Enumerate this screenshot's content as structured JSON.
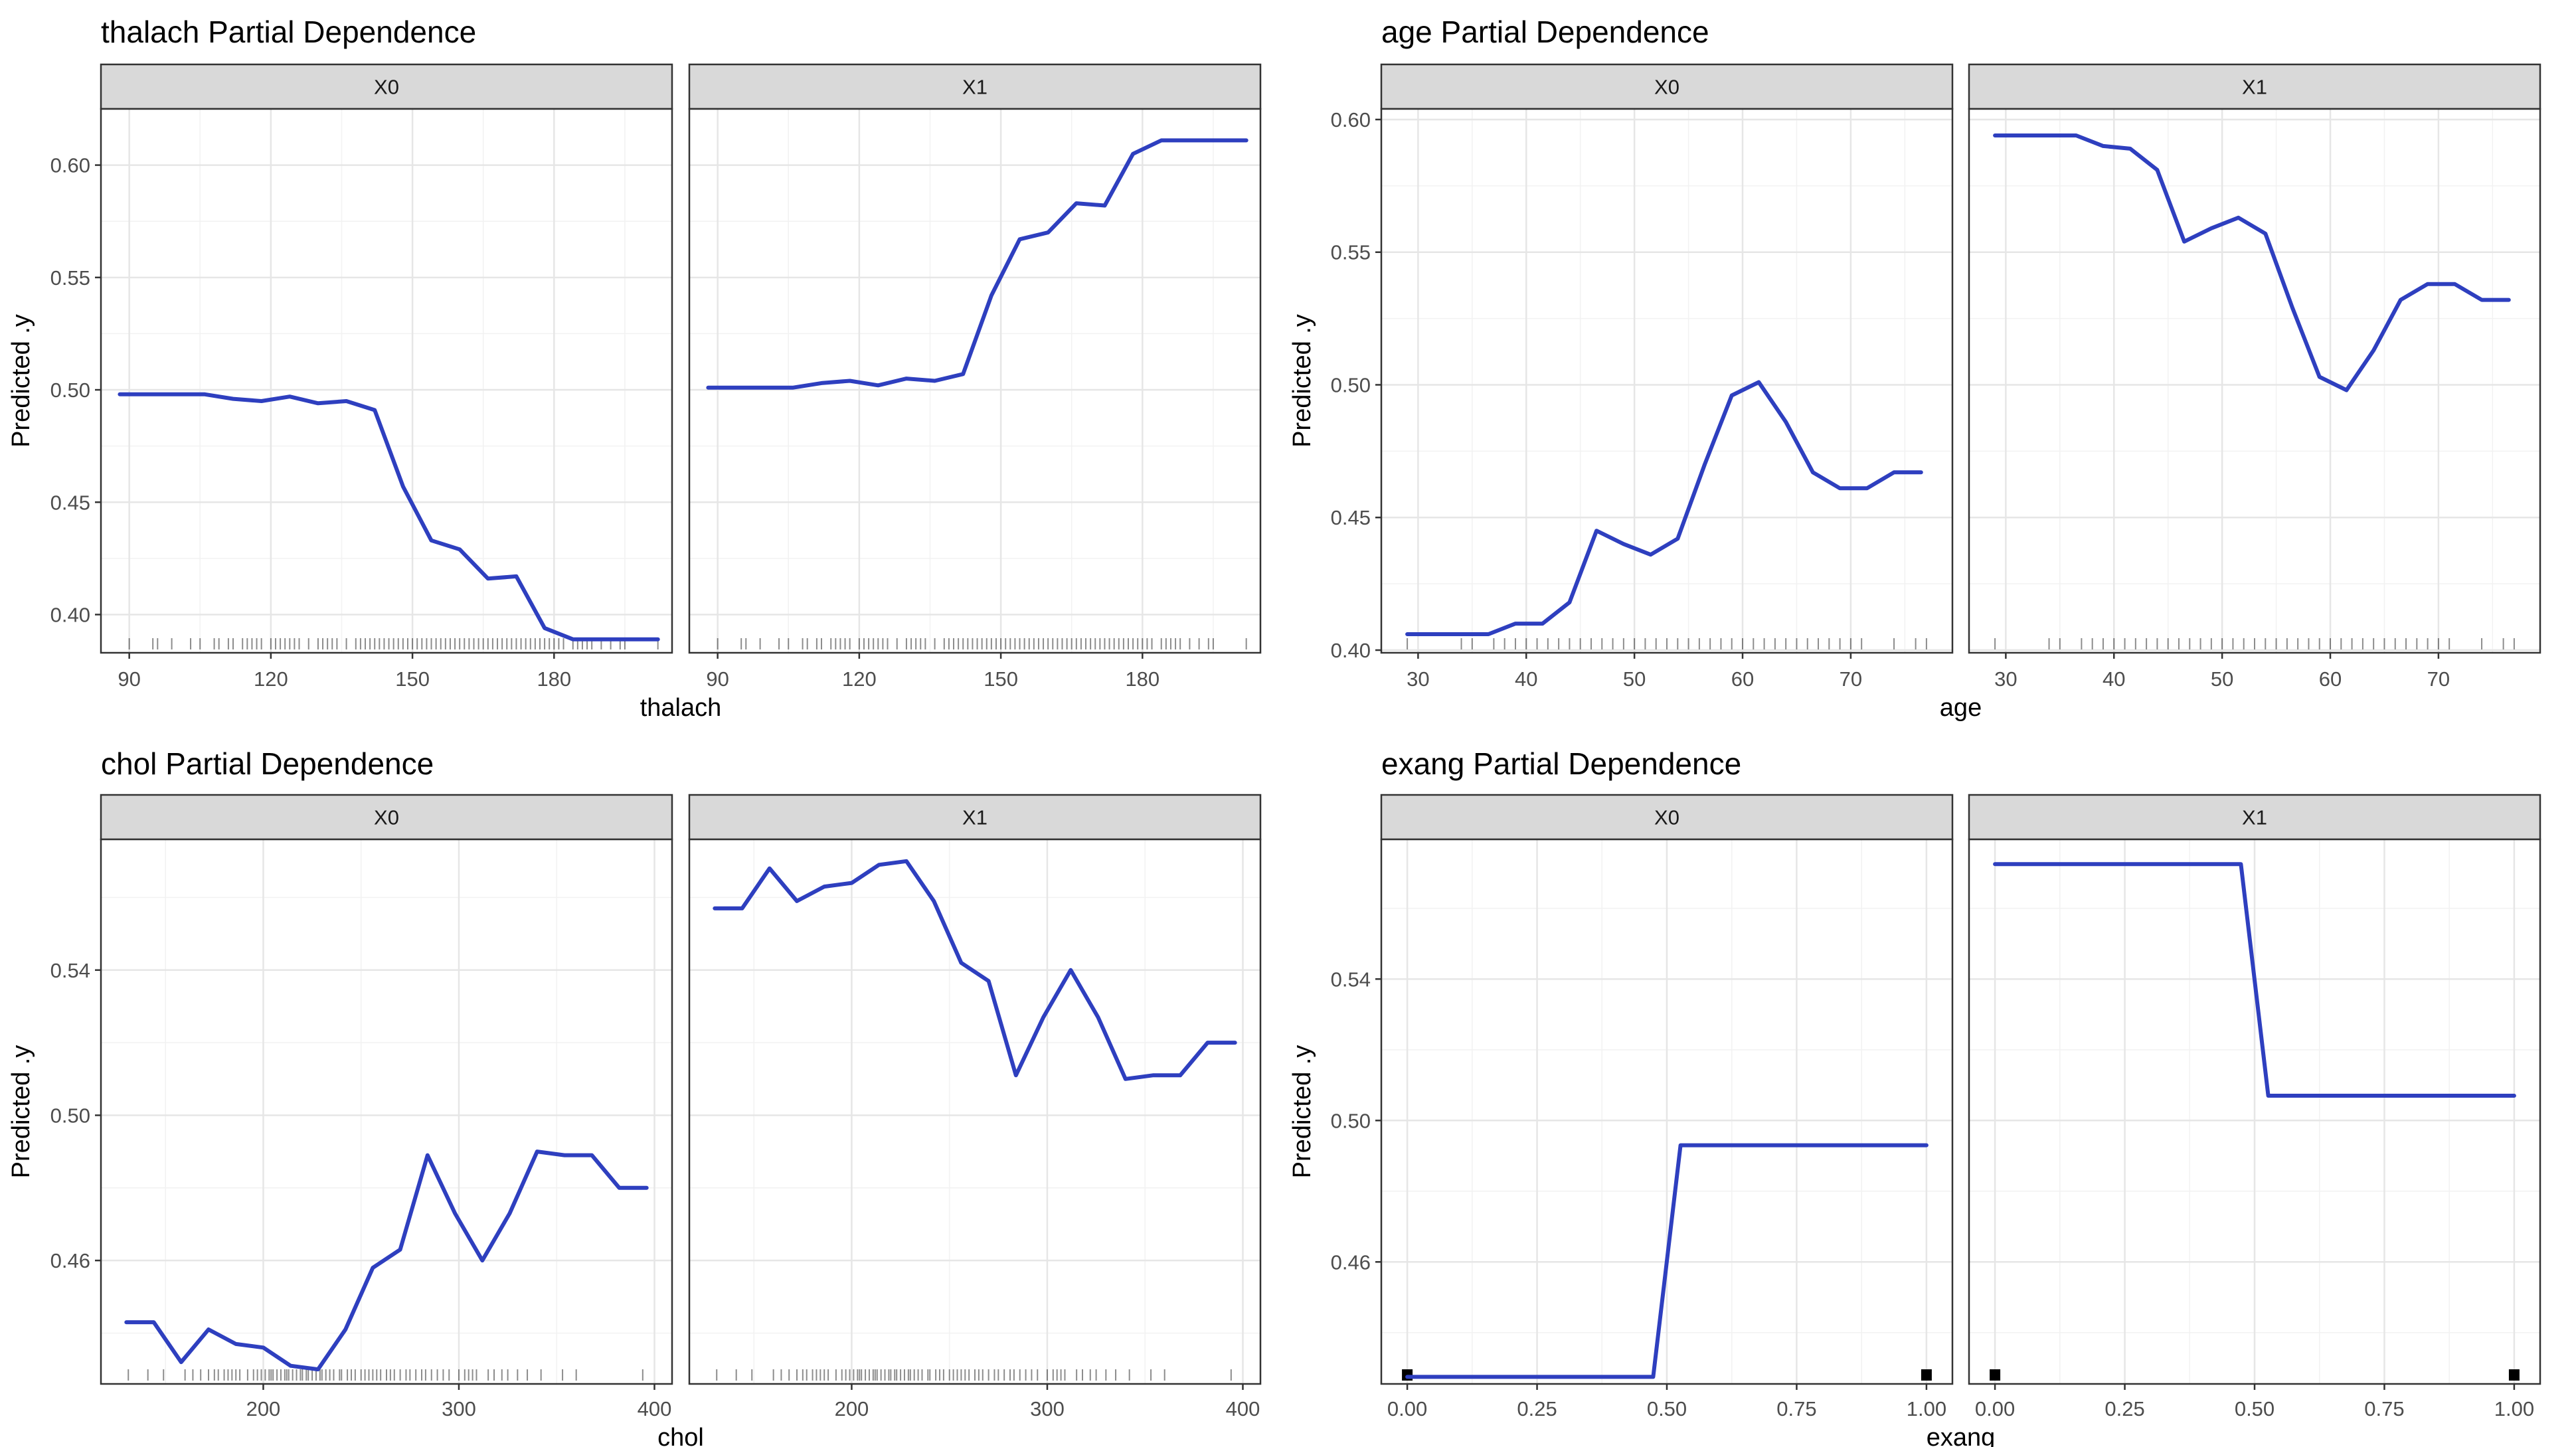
{
  "chart_data": [
    {
      "type": "line",
      "title": "thalach Partial Dependence",
      "xlabel": "thalach",
      "ylabel": "Predicted .y",
      "panels": [
        "X0",
        "X1"
      ],
      "xlim": [
        84,
        205
      ],
      "ylim": [
        0.383,
        0.625
      ],
      "xticks": [
        90,
        120,
        150,
        180
      ],
      "xtick_labels": [
        "90",
        "120",
        "150",
        "180"
      ],
      "yticks": [
        0.4,
        0.45,
        0.5,
        0.55,
        0.6
      ],
      "ytick_labels": [
        "0.40",
        "0.45",
        "0.50",
        "0.55",
        "0.60"
      ],
      "line_color": "#2E3FBF",
      "grid": true,
      "series": [
        {
          "x": [
            88,
            94,
            100,
            106,
            112,
            118,
            124,
            130,
            136,
            142,
            148,
            154,
            160,
            166,
            172,
            178,
            184,
            190,
            196,
            202
          ],
          "values": [
            0.498,
            0.498,
            0.498,
            0.498,
            0.496,
            0.495,
            0.497,
            0.494,
            0.495,
            0.491,
            0.457,
            0.433,
            0.429,
            0.416,
            0.417,
            0.394,
            0.389,
            0.389,
            0.389,
            0.389
          ]
        },
        {
          "x": [
            88,
            94,
            100,
            106,
            112,
            118,
            124,
            130,
            136,
            142,
            148,
            154,
            160,
            166,
            172,
            178,
            184,
            190,
            196,
            202
          ],
          "values": [
            0.501,
            0.501,
            0.501,
            0.501,
            0.503,
            0.504,
            0.502,
            0.505,
            0.504,
            0.507,
            0.542,
            0.567,
            0.57,
            0.583,
            0.582,
            0.605,
            0.611,
            0.611,
            0.611,
            0.611
          ]
        }
      ],
      "rug": [
        90,
        95,
        96,
        99,
        103,
        105,
        108,
        109,
        111,
        112,
        114,
        115,
        116,
        117,
        118,
        120,
        121,
        122,
        123,
        124,
        125,
        126,
        128,
        130,
        131,
        132,
        133,
        134,
        136,
        138,
        139,
        140,
        141,
        142,
        143,
        144,
        145,
        146,
        147,
        148,
        149,
        150,
        151,
        152,
        153,
        154,
        155,
        156,
        157,
        158,
        159,
        160,
        161,
        162,
        163,
        164,
        165,
        166,
        167,
        168,
        169,
        170,
        171,
        172,
        173,
        174,
        175,
        176,
        177,
        178,
        179,
        180,
        181,
        182,
        184,
        185,
        186,
        187,
        188,
        190,
        192,
        194,
        195,
        202
      ]
    },
    {
      "type": "line",
      "title": "age Partial Dependence",
      "xlabel": "age",
      "ylabel": "Predicted .y",
      "panels": [
        "X0",
        "X1"
      ],
      "xlim": [
        26.6,
        79.4
      ],
      "ylim": [
        0.399,
        0.604
      ],
      "xticks": [
        30,
        40,
        50,
        60,
        70
      ],
      "xtick_labels": [
        "30",
        "40",
        "50",
        "60",
        "70"
      ],
      "yticks": [
        0.4,
        0.45,
        0.5,
        0.55,
        0.6
      ],
      "ytick_labels": [
        "0.40",
        "0.45",
        "0.50",
        "0.55",
        "0.60"
      ],
      "line_color": "#2E3FBF",
      "grid": true,
      "series": [
        {
          "x": [
            29,
            31.5,
            34,
            36.5,
            39,
            41.5,
            44,
            46.5,
            49,
            51.5,
            54,
            56.5,
            59,
            61.5,
            64,
            66.5,
            69,
            71.5,
            74,
            76.5
          ],
          "values": [
            0.406,
            0.406,
            0.406,
            0.406,
            0.41,
            0.41,
            0.418,
            0.445,
            0.44,
            0.436,
            0.442,
            0.47,
            0.496,
            0.501,
            0.486,
            0.467,
            0.461,
            0.461,
            0.467,
            0.467
          ]
        },
        {
          "x": [
            29,
            31.5,
            34,
            36.5,
            39,
            41.5,
            44,
            46.5,
            49,
            51.5,
            54,
            56.5,
            59,
            61.5,
            64,
            66.5,
            69,
            71.5,
            74,
            76.5
          ],
          "values": [
            0.594,
            0.594,
            0.594,
            0.594,
            0.59,
            0.589,
            0.581,
            0.554,
            0.559,
            0.563,
            0.557,
            0.529,
            0.503,
            0.498,
            0.513,
            0.532,
            0.538,
            0.538,
            0.532,
            0.532
          ]
        }
      ],
      "rug": [
        29,
        34,
        35,
        37,
        38,
        39,
        40,
        41,
        42,
        43,
        44,
        45,
        46,
        47,
        48,
        49,
        50,
        51,
        52,
        53,
        54,
        55,
        56,
        57,
        58,
        59,
        60,
        61,
        62,
        63,
        64,
        65,
        66,
        67,
        68,
        69,
        70,
        71,
        74,
        76,
        77
      ]
    },
    {
      "type": "line",
      "title": "chol Partial Dependence",
      "xlabel": "chol",
      "ylabel": "Predicted .y",
      "panels": [
        "X0",
        "X1"
      ],
      "xlim": [
        117,
        409
      ],
      "ylim": [
        0.426,
        0.576
      ],
      "xticks": [
        200,
        300,
        400
      ],
      "xtick_labels": [
        "200",
        "300",
        "400"
      ],
      "yticks": [
        0.46,
        0.5,
        0.54
      ],
      "ytick_labels": [
        "0.46",
        "0.50",
        "0.54"
      ],
      "line_color": "#2E3FBF",
      "grid": true,
      "series": [
        {
          "x": [
            130,
            144,
            158,
            172,
            186,
            200,
            214,
            228,
            242,
            256,
            270,
            284,
            298,
            312,
            326,
            340,
            354,
            368,
            382,
            396
          ],
          "values": [
            0.443,
            0.443,
            0.432,
            0.441,
            0.437,
            0.436,
            0.431,
            0.43,
            0.441,
            0.458,
            0.463,
            0.489,
            0.473,
            0.46,
            0.473,
            0.49,
            0.489,
            0.489,
            0.48,
            0.48
          ]
        },
        {
          "x": [
            130,
            144,
            158,
            172,
            186,
            200,
            214,
            228,
            242,
            256,
            270,
            284,
            298,
            312,
            326,
            340,
            354,
            368,
            382,
            396
          ],
          "values": [
            0.557,
            0.557,
            0.568,
            0.559,
            0.563,
            0.564,
            0.569,
            0.57,
            0.559,
            0.542,
            0.537,
            0.511,
            0.527,
            0.54,
            0.527,
            0.51,
            0.511,
            0.511,
            0.52,
            0.52
          ]
        }
      ],
      "rug": [
        131,
        141,
        149,
        160,
        164,
        168,
        172,
        175,
        177,
        180,
        182,
        184,
        186,
        188,
        192,
        195,
        197,
        199,
        201,
        203,
        204,
        205,
        207,
        209,
        211,
        212,
        213,
        215,
        217,
        219,
        220,
        222,
        223,
        225,
        227,
        229,
        230,
        232,
        234,
        236,
        239,
        240,
        243,
        245,
        247,
        250,
        252,
        254,
        256,
        258,
        260,
        263,
        265,
        267,
        270,
        273,
        275,
        278,
        281,
        283,
        286,
        289,
        292,
        295,
        300,
        303,
        305,
        307,
        309,
        315,
        318,
        322,
        325,
        330,
        335,
        342,
        353,
        360,
        394
      ]
    },
    {
      "type": "line",
      "title": "exang Partial Dependence",
      "xlabel": "exang",
      "ylabel": "Predicted .y",
      "panels": [
        "X0",
        "X1"
      ],
      "xlim": [
        -0.05,
        1.05
      ],
      "ylim": [
        0.4255,
        0.5795
      ],
      "xticks": [
        0,
        0.25,
        0.5,
        0.75,
        1.0
      ],
      "xtick_labels": [
        "0.00",
        "0.25",
        "0.50",
        "0.75",
        "1.00"
      ],
      "yticks": [
        0.46,
        0.5,
        0.54
      ],
      "ytick_labels": [
        "0.46",
        "0.50",
        "0.54"
      ],
      "line_color": "#2E3FBF",
      "grid": true,
      "series": [
        {
          "x": [
            0.0,
            0.0526,
            0.1053,
            0.1579,
            0.2105,
            0.2632,
            0.3158,
            0.3684,
            0.4211,
            0.4737,
            0.5263,
            0.5789,
            0.6316,
            0.6842,
            0.7368,
            0.7895,
            0.8421,
            0.8947,
            0.9474,
            1.0
          ],
          "values": [
            0.4275,
            0.4275,
            0.4275,
            0.4275,
            0.4275,
            0.4275,
            0.4275,
            0.4275,
            0.4275,
            0.4275,
            0.493,
            0.493,
            0.493,
            0.493,
            0.493,
            0.493,
            0.493,
            0.493,
            0.493,
            0.493
          ]
        },
        {
          "x": [
            0.0,
            0.0526,
            0.1053,
            0.1579,
            0.2105,
            0.2632,
            0.3158,
            0.3684,
            0.4211,
            0.4737,
            0.5263,
            0.5789,
            0.6316,
            0.6842,
            0.7368,
            0.7895,
            0.8421,
            0.8947,
            0.9474,
            1.0
          ],
          "values": [
            0.5725,
            0.5725,
            0.5725,
            0.5725,
            0.5725,
            0.5725,
            0.5725,
            0.5725,
            0.5725,
            0.5725,
            0.507,
            0.507,
            0.507,
            0.507,
            0.507,
            0.507,
            0.507,
            0.507,
            0.507,
            0.507
          ]
        }
      ],
      "rug": [
        0,
        1
      ]
    }
  ]
}
